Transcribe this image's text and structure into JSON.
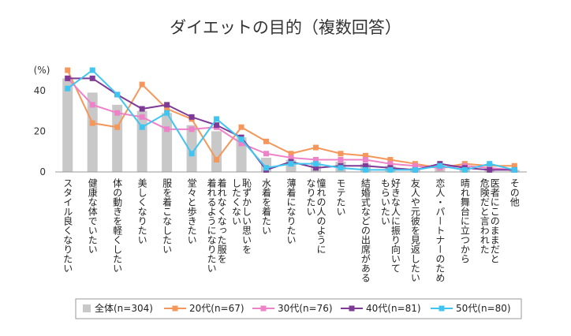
{
  "chart_data": {
    "type": "bar",
    "title": "ダイエットの目的（複数回答）",
    "unit_label": "(%)",
    "ylim": [
      0,
      50
    ],
    "yticks": [
      0,
      20,
      40
    ],
    "grid": false,
    "legend_position": "bottom",
    "categories": [
      [
        "スタイル良くなりたい"
      ],
      [
        "健康な体でいたい"
      ],
      [
        "体の動きを軽くしたい"
      ],
      [
        "美しくなりたい"
      ],
      [
        "服を着こなしたい"
      ],
      [
        "堂々と歩きたい"
      ],
      [
        "着れなくなった服を",
        "着れるようになりたい"
      ],
      [
        "恥ずかしい思いを",
        "したくない"
      ],
      [
        "水着を着たい"
      ],
      [
        "薄着になりたい"
      ],
      [
        "憧れの人のように",
        "なりたい"
      ],
      [
        "モテたい"
      ],
      [
        "結婚式などの出席がある"
      ],
      [
        "好きな人に振り向いて",
        "もらいたい"
      ],
      [
        "友人や元彼を見返したい"
      ],
      [
        "恋人・パートナーのため"
      ],
      [
        "晴れ舞台に立つから"
      ],
      [
        "医者にこのままだと",
        "危険だと言われた"
      ],
      [
        "その他"
      ]
    ],
    "series": [
      {
        "name": "全体(n=304)",
        "kind": "bar",
        "color": "#c8c8c8",
        "values": [
          46,
          39,
          33,
          30,
          29,
          23,
          20,
          17,
          7,
          6,
          5,
          5,
          4,
          3,
          2,
          2,
          2,
          2,
          1
        ]
      },
      {
        "name": "20代(n=67)",
        "kind": "line",
        "color": "#f5975a",
        "values": [
          50,
          24,
          22,
          43,
          31,
          26,
          6,
          22,
          15,
          9,
          12,
          9,
          8,
          6,
          4,
          2,
          4,
          3,
          3
        ]
      },
      {
        "name": "30代(n=76)",
        "kind": "line",
        "color": "#ee82c8",
        "values": [
          46,
          33,
          29,
          27,
          21,
          21,
          22,
          14,
          9,
          7,
          6,
          6,
          6,
          4,
          3,
          2,
          3,
          2,
          1
        ]
      },
      {
        "name": "40代(n=81)",
        "kind": "line",
        "color": "#7e3a96",
        "values": [
          46,
          46,
          38,
          31,
          33,
          27,
          23,
          17,
          1,
          5,
          2,
          3,
          3,
          2,
          1,
          4,
          2,
          1,
          1
        ]
      },
      {
        "name": "50代(n=80)",
        "kind": "line",
        "color": "#40c4f0",
        "values": [
          41,
          50,
          38,
          22,
          29,
          9,
          26,
          16,
          2,
          4,
          4,
          2,
          1,
          1,
          1,
          3,
          1,
          4,
          1
        ]
      }
    ]
  }
}
